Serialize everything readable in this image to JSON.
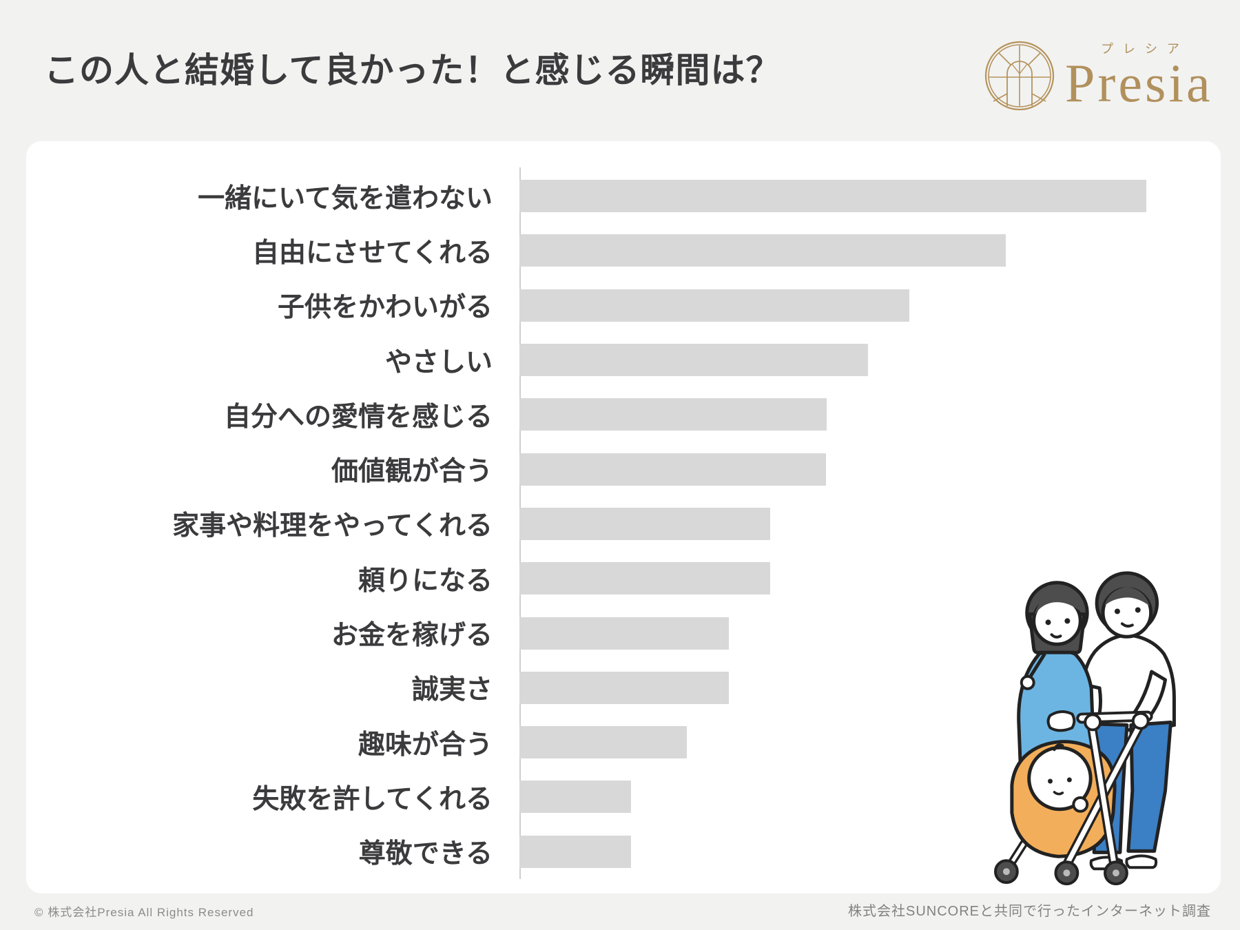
{
  "page": {
    "title": "この人と結婚して良かった！と感じる瞬間は？",
    "footer_left": "© 株式会社Presia All Rights Reserved",
    "footer_right": "株式会社SUNCOREと共同で行ったインターネット調査"
  },
  "logo": {
    "name": "Presia",
    "kana": "プレシア",
    "color": "#B1905C"
  },
  "colors": {
    "background": "#F2F2F1",
    "card": "#FFFFFF",
    "bar": "#D8D8D8",
    "axis": "#CFCFCF",
    "title_text": "#3B3B3D",
    "footer_text": "#8B8B8B"
  },
  "chart_data": {
    "type": "bar",
    "orientation": "horizontal",
    "title": "この人と結婚して良かった！と感じる瞬間は？",
    "categories": [
      "一緒にいて気を遣わない",
      "自由にさせてくれる",
      "子供をかわいがる",
      "やさしい",
      "自分への愛情を感じる",
      "価値観が合う",
      "家事や料理をやってくれる",
      "頼りになる",
      "お金を稼げる",
      "誠実さ",
      "趣味が合う",
      "失敗を許してくれる",
      "尊敬できる"
    ],
    "values": [
      93.0,
      72.1,
      57.8,
      51.7,
      45.6,
      45.5,
      37.2,
      37.2,
      31.1,
      31.1,
      24.8,
      16.5,
      16.5
    ],
    "value_unit": "relative bar length, % of plot width (no numeric axis shown in image)",
    "value_labels_shown": false,
    "bar_color": "#D8D8D8",
    "grid": false,
    "legend": false
  },
  "illustration": {
    "description": "couple pushing baby stroller",
    "colors": {
      "dress_blue": "#6CB5E3",
      "pants_blue": "#3B7FC4",
      "stroller_orange": "#F2AE5A",
      "hair_gray": "#4D4D4D",
      "outline": "#222222"
    }
  }
}
